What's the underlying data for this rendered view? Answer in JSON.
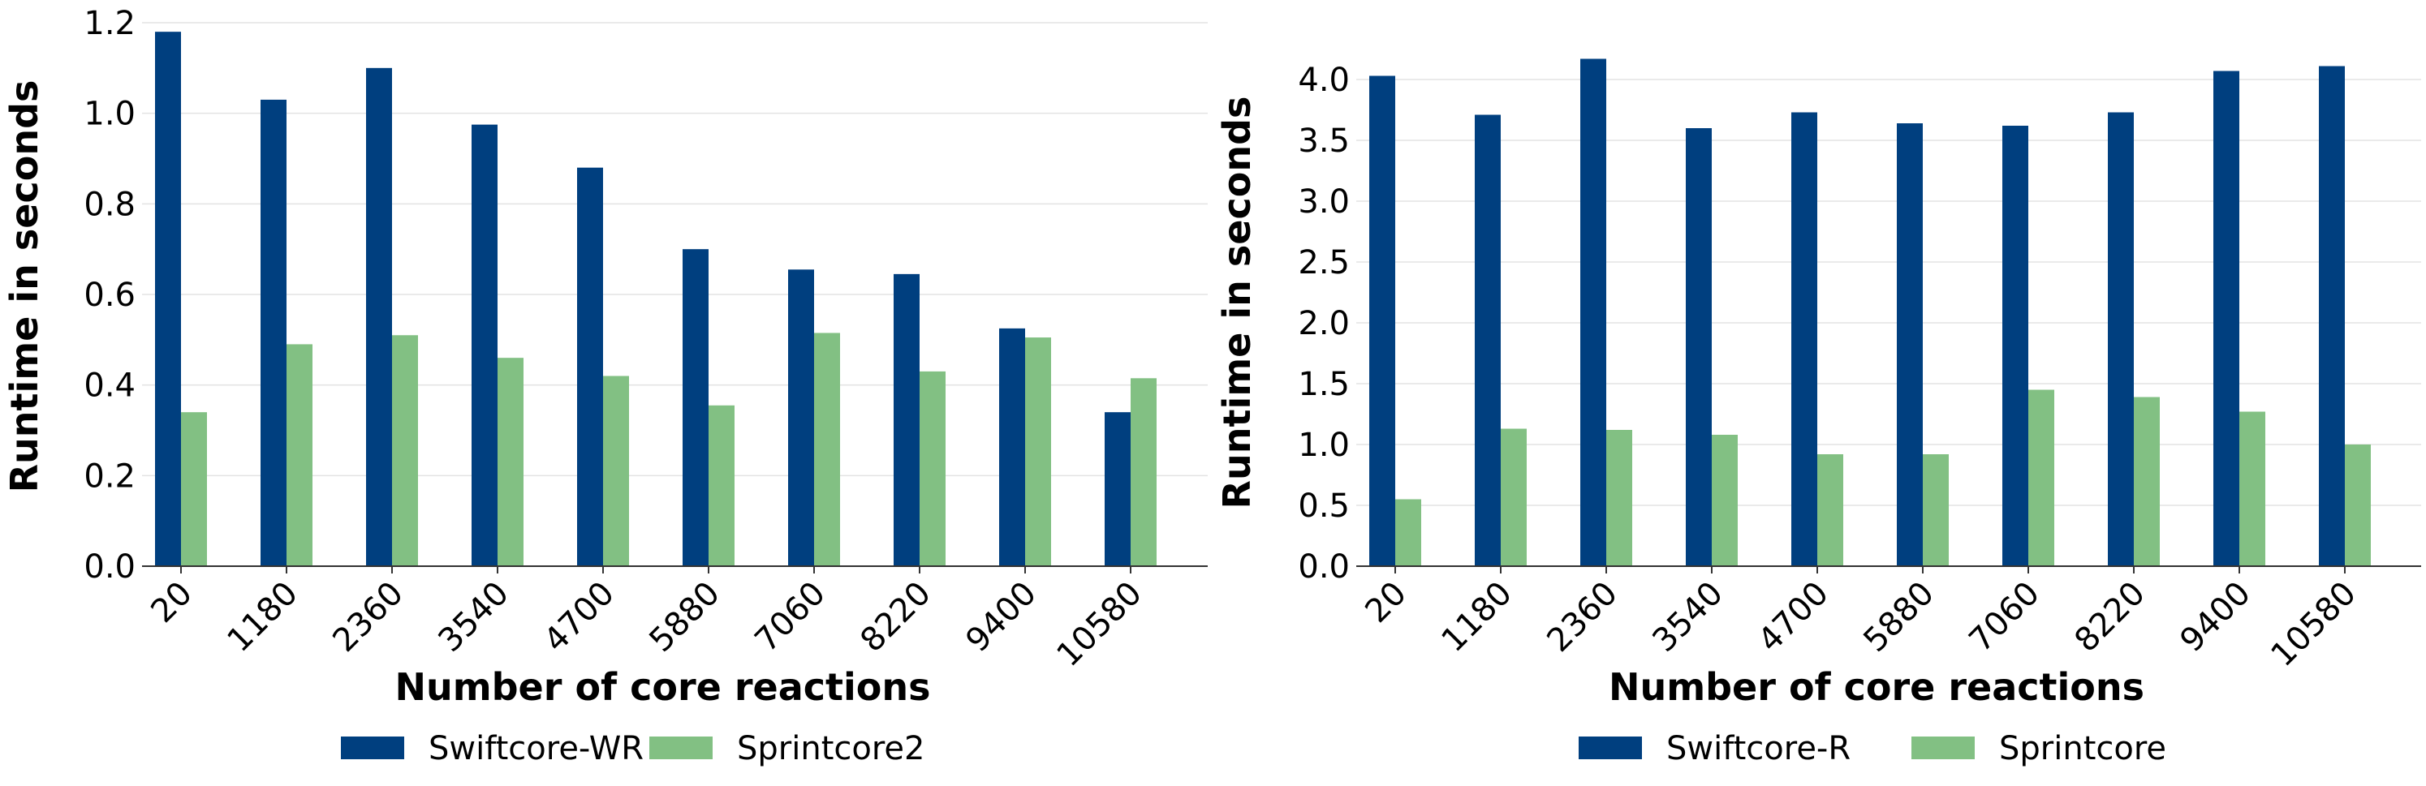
{
  "chart_data": [
    {
      "type": "bar",
      "title": "",
      "xlabel": "Number of core reactions",
      "ylabel": "Runtime in seconds",
      "categories": [
        "20",
        "1180",
        "2360",
        "3540",
        "4700",
        "5880",
        "7060",
        "8220",
        "9400",
        "10580"
      ],
      "ylim": [
        0,
        1.2
      ],
      "yticks": [
        "0.0",
        "0.2",
        "0.4",
        "0.6",
        "0.8",
        "1.0",
        "1.2"
      ],
      "grid": "horizontal",
      "legend_position": "bottom-center",
      "series": [
        {
          "name": "Swiftcore-WR",
          "color": "#003f7f",
          "values": [
            1.18,
            1.03,
            1.1,
            0.975,
            0.88,
            0.7,
            0.655,
            0.645,
            0.525,
            0.34
          ]
        },
        {
          "name": "Sprintcore2",
          "color": "#82c083",
          "values": [
            0.34,
            0.49,
            0.51,
            0.46,
            0.42,
            0.355,
            0.515,
            0.43,
            0.505,
            0.415
          ]
        }
      ]
    },
    {
      "type": "bar",
      "title": "",
      "xlabel": "Number of core reactions",
      "ylabel": "Runtime in seconds",
      "categories": [
        "20",
        "1180",
        "2360",
        "3540",
        "4700",
        "5880",
        "7060",
        "8220",
        "9400",
        "10580"
      ],
      "ylim": [
        0,
        4.2
      ],
      "yticks": [
        "0.0",
        "0.5",
        "1.0",
        "1.5",
        "2.0",
        "2.5",
        "3.0",
        "3.5",
        "4.0"
      ],
      "grid": "horizontal",
      "legend_position": "bottom-center",
      "series": [
        {
          "name": "Swiftcore-R",
          "color": "#003f7f",
          "values": [
            4.03,
            3.71,
            4.17,
            3.6,
            3.73,
            3.64,
            3.62,
            3.73,
            4.07,
            4.11
          ]
        },
        {
          "name": "Sprintcore",
          "color": "#82c083",
          "values": [
            0.55,
            1.13,
            1.12,
            1.08,
            0.92,
            0.92,
            1.45,
            1.39,
            1.27,
            1.0
          ]
        }
      ]
    }
  ]
}
